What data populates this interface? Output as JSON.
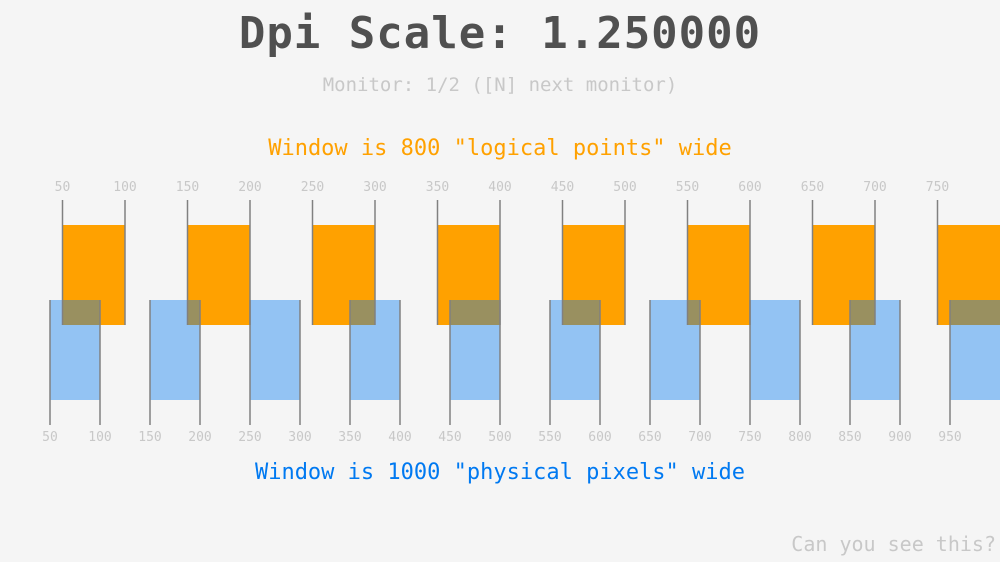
{
  "title": "Dpi Scale: 1.250000",
  "monitor_text": "Monitor: 1/2 ([N] next monitor)",
  "logical_text": "Window is 800 \"logical points\" wide",
  "physical_text": "Window is 1000 \"physical pixels\" wide",
  "secret_text": "Can you see this?",
  "dpi_scale": 1.25,
  "logical_ticks": [
    "50",
    "100",
    "150",
    "200",
    "250",
    "300",
    "350",
    "400",
    "450",
    "500",
    "550",
    "600",
    "650",
    "700",
    "750"
  ],
  "physical_ticks": [
    "50",
    "100",
    "150",
    "200",
    "250",
    "300",
    "350",
    "400",
    "450",
    "500",
    "550",
    "600",
    "650",
    "700",
    "750",
    "800",
    "850",
    "900",
    "950"
  ],
  "colors": {
    "orange": "#ffa100",
    "blue": "#0079f1",
    "blue_alpha": 0.4,
    "line": "#808080",
    "label": "#c8c8c8",
    "title": "#505050"
  }
}
